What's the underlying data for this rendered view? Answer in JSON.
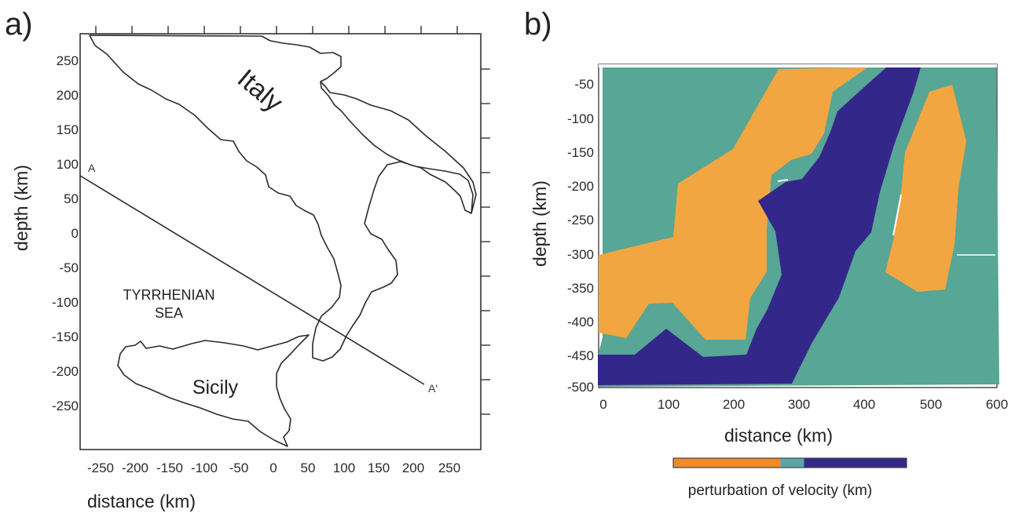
{
  "panel_a": {
    "label": "a)",
    "xlabel": "distance (km)",
    "ylabel": "depth (km)",
    "x_ticks": [
      "-250",
      "-200",
      "-150",
      "-100",
      "-50",
      "0",
      "50",
      "100",
      "150",
      "200",
      "250"
    ],
    "y_ticks": [
      "250",
      "200",
      "150",
      "100",
      "50",
      "0",
      "-50",
      "-100",
      "-150",
      "-200",
      "-250"
    ],
    "places": {
      "italy": "Italy",
      "sea_line1": "TYRRHENIAN",
      "sea_line2": "SEA",
      "sicily": "Sicily"
    },
    "profile": {
      "start_label": "A",
      "end_label": "A'"
    },
    "colors": {
      "coastline": "#2b2b2b",
      "frame": "#333333"
    }
  },
  "panel_b": {
    "label": "b)",
    "xlabel": "distance (km)",
    "ylabel": "depth (km)",
    "x_ticks": [
      "0",
      "100",
      "200",
      "300",
      "400",
      "500",
      "600"
    ],
    "y_ticks": [
      "-50",
      "-100",
      "-150",
      "-200",
      "-250",
      "-300",
      "-350",
      "-400",
      "-450",
      "-500"
    ],
    "legend": {
      "title": "perturbation of velocity (km)",
      "segments": [
        {
          "color": "#ef8a26",
          "fraction": 0.46
        },
        {
          "color": "#5aa7a8",
          "fraction": 0.1
        },
        {
          "color": "#33298a",
          "fraction": 0.44
        }
      ]
    },
    "colors": {
      "background_zone": "#58a695",
      "slow_zone": "#f2a641",
      "fast_slab": "#34278a"
    }
  }
}
